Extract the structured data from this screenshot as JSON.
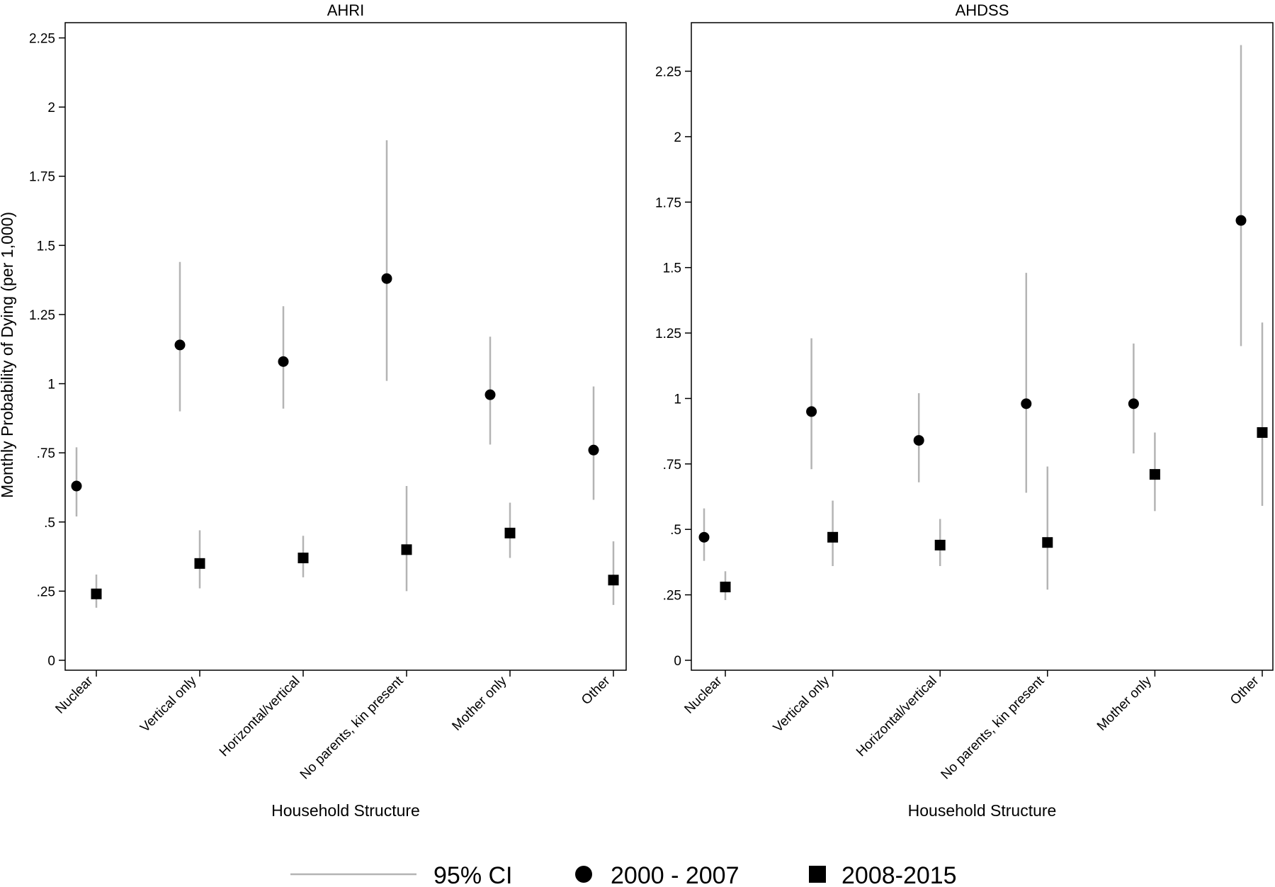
{
  "chart_data": [
    {
      "type": "scatter",
      "title": "AHRI",
      "xlabel": "Household Structure",
      "ylabel": "Monthly Probability of Dying (per 1,000)",
      "ylim": [
        0,
        2.3
      ],
      "yticks": [
        0,
        0.25,
        0.5,
        0.75,
        1,
        1.25,
        1.5,
        1.75,
        2,
        2.25
      ],
      "ytick_labels": [
        "0",
        ".25",
        ".5",
        ".75",
        "1",
        "1.25",
        "1.5",
        "1.75",
        "2",
        "2.25"
      ],
      "categories": [
        "Nuclear",
        "Vertical only",
        "Horizontal/vertical",
        "No parents, kin present",
        "Mother only",
        "Other"
      ],
      "series": [
        {
          "name": "2000 - 2007",
          "marker": "circle",
          "values": [
            0.63,
            1.14,
            1.08,
            1.38,
            0.96,
            0.76
          ],
          "ci_low": [
            0.52,
            0.9,
            0.91,
            1.01,
            0.78,
            0.58
          ],
          "ci_high": [
            0.77,
            1.44,
            1.28,
            1.88,
            1.17,
            0.99
          ]
        },
        {
          "name": "2008-2015",
          "marker": "square",
          "values": [
            0.24,
            0.35,
            0.37,
            0.4,
            0.46,
            0.29
          ],
          "ci_low": [
            0.19,
            0.26,
            0.3,
            0.25,
            0.37,
            0.2
          ],
          "ci_high": [
            0.31,
            0.47,
            0.45,
            0.63,
            0.57,
            0.43
          ]
        }
      ]
    },
    {
      "type": "scatter",
      "title": "AHDSS",
      "xlabel": "Household Structure",
      "ylabel": "",
      "ylim": [
        0,
        2.43
      ],
      "yticks": [
        0,
        0.25,
        0.5,
        0.75,
        1,
        1.25,
        1.5,
        1.75,
        2,
        2.25
      ],
      "ytick_labels": [
        "0",
        ".25",
        ".5",
        ".75",
        "1",
        "1.25",
        "1.5",
        "1.75",
        "2",
        "2.25"
      ],
      "categories": [
        "Nuclear",
        "Vertical only",
        "Horizontal/vertical",
        "No parents, kin present",
        "Mother only",
        "Other"
      ],
      "series": [
        {
          "name": "2000 - 2007",
          "marker": "circle",
          "values": [
            0.47,
            0.95,
            0.84,
            0.98,
            0.98,
            1.68
          ],
          "ci_low": [
            0.38,
            0.73,
            0.68,
            0.64,
            0.79,
            1.2
          ],
          "ci_high": [
            0.58,
            1.23,
            1.02,
            1.48,
            1.21,
            2.35
          ]
        },
        {
          "name": "2008-2015",
          "marker": "square",
          "values": [
            0.28,
            0.47,
            0.44,
            0.45,
            0.71,
            0.87
          ],
          "ci_low": [
            0.23,
            0.36,
            0.36,
            0.27,
            0.57,
            0.59
          ],
          "ci_high": [
            0.34,
            0.61,
            0.54,
            0.74,
            0.87,
            1.29
          ]
        }
      ]
    }
  ],
  "legend": {
    "placement": "bottom",
    "ci_label": "95% CI",
    "series1_label": "2000 - 2007",
    "series2_label": "2008-2015",
    "ci_color": "#b4b4b4",
    "marker_color": "#000000"
  }
}
